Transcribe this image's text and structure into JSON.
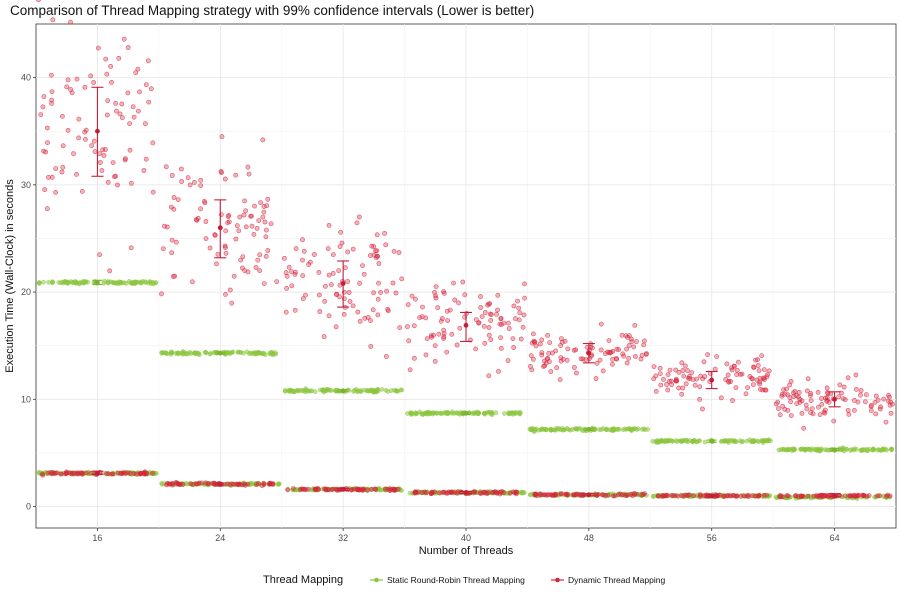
{
  "chart_data": {
    "type": "scatter",
    "title": "Comparison of Thread Mapping strategy with 99% confidence intervals (Lower is better)",
    "xlabel": "Number of Threads",
    "ylabel": "Execution Time (Wall-Clock) in seconds",
    "categories": [
      "16",
      "24",
      "32",
      "40",
      "48",
      "56",
      "64"
    ],
    "ylim": [
      -2,
      45
    ],
    "yticks": [
      0,
      10,
      20,
      30,
      40
    ],
    "grid": true,
    "legend": {
      "position": "bottom",
      "title": "Thread Mapping"
    },
    "series": [
      {
        "name": "Static Round-Robin Thread Mapping",
        "color": "#8cc63f",
        "upper_band_mean": [
          20.9,
          14.3,
          10.8,
          8.7,
          7.2,
          6.1,
          5.3
        ],
        "lower_band_mean": [
          3.1,
          2.1,
          1.6,
          1.3,
          1.1,
          1.0,
          0.9
        ],
        "ci": [
          [
            20.7,
            21.1
          ],
          [
            14.2,
            14.4
          ],
          [
            10.7,
            10.9
          ],
          [
            8.6,
            8.8
          ],
          [
            7.1,
            7.3
          ],
          [
            6.0,
            6.2
          ],
          [
            5.2,
            5.4
          ]
        ]
      },
      {
        "name": "Dynamic Thread Mapping",
        "color": "#d7263d",
        "mean": [
          35.0,
          26.0,
          20.8,
          16.9,
          14.3,
          11.8,
          10.0
        ],
        "ci": [
          [
            30.8,
            39.1
          ],
          [
            23.2,
            28.6
          ],
          [
            18.6,
            22.9
          ],
          [
            15.4,
            18.1
          ],
          [
            13.4,
            15.2
          ],
          [
            11.0,
            12.6
          ],
          [
            9.3,
            10.7
          ]
        ],
        "spread": [
          4.5,
          3.4,
          2.6,
          1.8,
          1.0,
          0.9,
          0.8
        ],
        "lower_band_mean": [
          3.1,
          2.1,
          1.6,
          1.3,
          1.1,
          1.0,
          1.0
        ],
        "lower_ci": [
          [
            3.0,
            3.3
          ],
          [
            2.0,
            2.2
          ],
          [
            1.5,
            1.7
          ],
          [
            1.2,
            1.4
          ],
          [
            1.0,
            1.2
          ],
          [
            0.9,
            1.1
          ],
          [
            0.9,
            1.2
          ]
        ]
      }
    ]
  }
}
